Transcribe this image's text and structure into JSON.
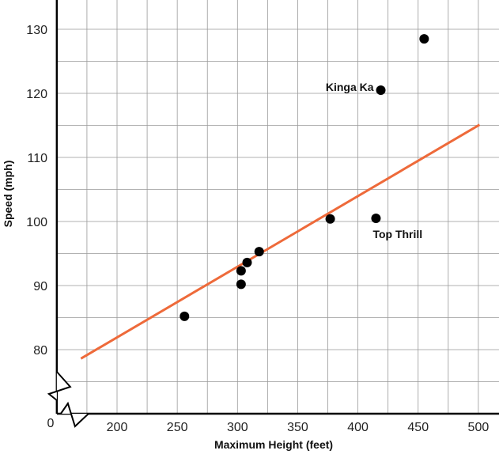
{
  "chart_data": {
    "type": "scatter",
    "title": "",
    "xlabel": "Maximum Height (feet)",
    "ylabel": "Speed (mph)",
    "xlim": [
      150,
      516
    ],
    "ylim": [
      70,
      135
    ],
    "x_axis_break": true,
    "y_axis_break": true,
    "origin_label": "0",
    "xticks": [
      200,
      250,
      300,
      350,
      400,
      450,
      500
    ],
    "yticks": [
      80,
      90,
      100,
      110,
      120,
      130
    ],
    "grid": true,
    "points": [
      {
        "x": 256,
        "y": 85.2
      },
      {
        "x": 303,
        "y": 90.2
      },
      {
        "x": 303,
        "y": 92.3
      },
      {
        "x": 308,
        "y": 93.6
      },
      {
        "x": 318,
        "y": 95.3
      },
      {
        "x": 377,
        "y": 100.4
      },
      {
        "x": 415,
        "y": 100.5,
        "label": "Top Thrill"
      },
      {
        "x": 419,
        "y": 120.5,
        "label": "Kinga Ka"
      },
      {
        "x": 455,
        "y": 128.5
      }
    ],
    "trendline": {
      "x": [
        170,
        501
      ],
      "y": [
        78.6,
        115.1
      ],
      "color": "#ee6a3a"
    },
    "point_color": "#000000"
  }
}
